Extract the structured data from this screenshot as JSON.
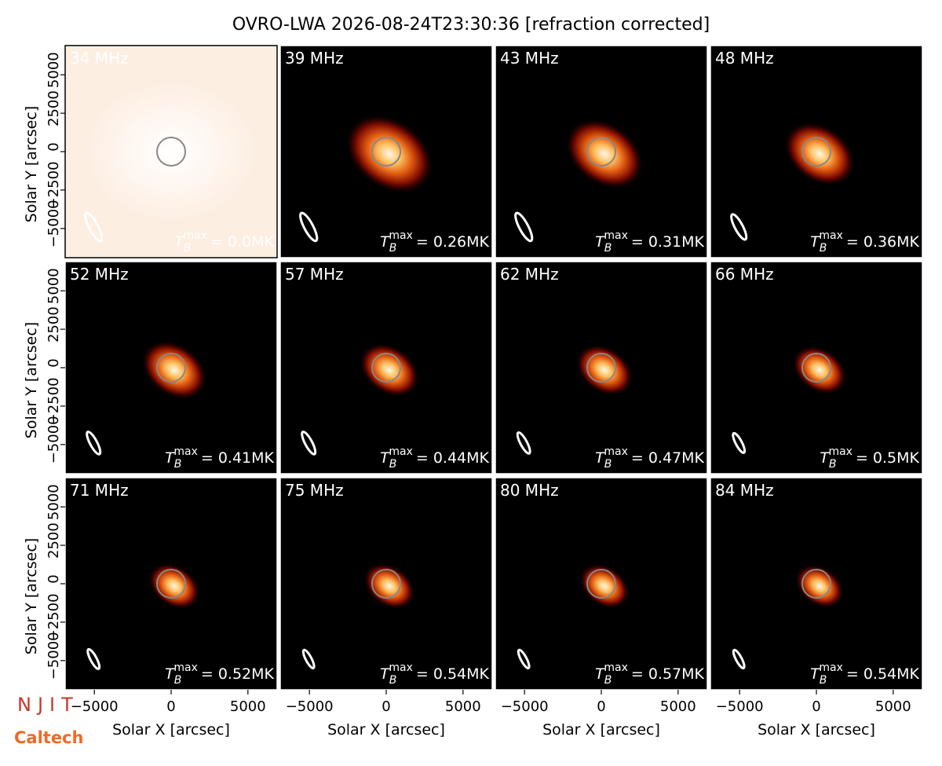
{
  "chart_data": {
    "type": "image",
    "title": "OVRO-LWA 2026-08-24T23:30:36 [refraction corrected]",
    "xlabel": "Solar X [arcsec]",
    "ylabel": "Solar Y [arcsec]",
    "xlim": [
      -6900,
      6900
    ],
    "ylim": [
      -6900,
      6900
    ],
    "xticks": [
      {
        "value": -5000,
        "label": "−5000"
      },
      0,
      5000
    ],
    "yticks": [
      {
        "value": -5000,
        "label": "−5000"
      },
      {
        "value": -2500,
        "label": "−2500"
      },
      0,
      2500,
      5000
    ],
    "tb_symbol": "T",
    "tb_sub": "B",
    "tb_sup": "max",
    "panels": [
      {
        "label": "34 MHz",
        "tb_text": "= 0.0MK"
      },
      {
        "label": "39 MHz",
        "tb_text": "= 0.26MK"
      },
      {
        "label": "43 MHz",
        "tb_text": "= 0.31MK"
      },
      {
        "label": "48 MHz",
        "tb_text": "= 0.36MK"
      },
      {
        "label": "52 MHz",
        "tb_text": "= 0.41MK"
      },
      {
        "label": "57 MHz",
        "tb_text": "= 0.44MK"
      },
      {
        "label": "62 MHz",
        "tb_text": "= 0.47MK"
      },
      {
        "label": "66 MHz",
        "tb_text": "= 0.5MK"
      },
      {
        "label": "71 MHz",
        "tb_text": "= 0.52MK"
      },
      {
        "label": "75 MHz",
        "tb_text": "= 0.54MK"
      },
      {
        "label": "80 MHz",
        "tb_text": "= 0.57MK"
      },
      {
        "label": "84 MHz",
        "tb_text": "= 0.54MK"
      }
    ]
  },
  "logos": {
    "njit": "NJIT",
    "caltech": "Caltech"
  }
}
